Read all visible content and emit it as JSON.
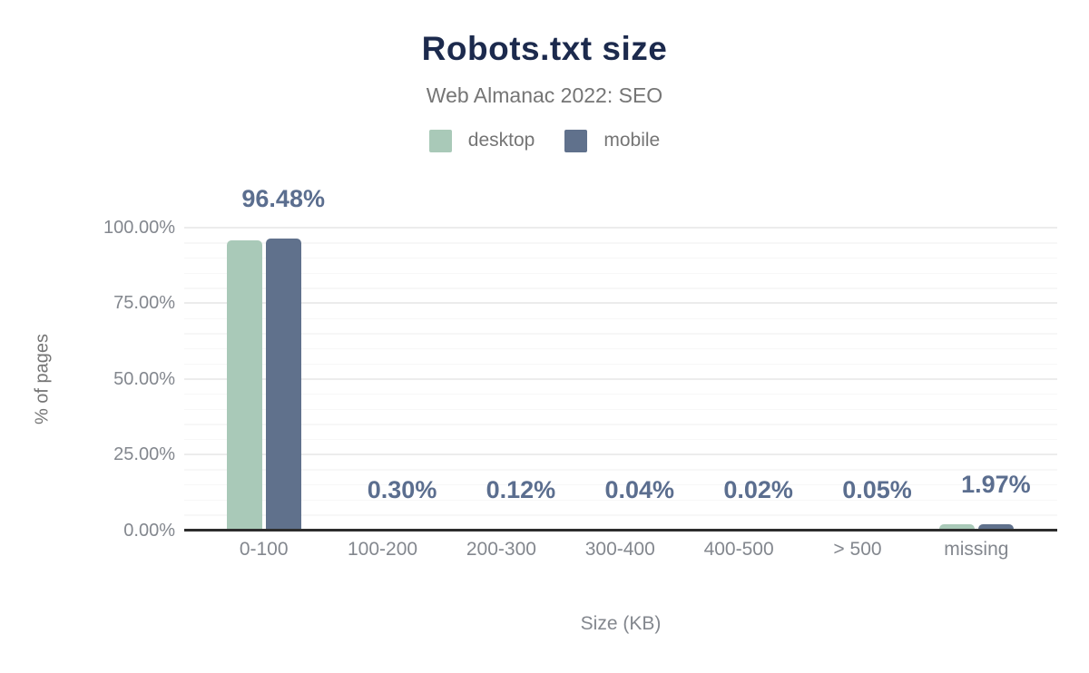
{
  "header": {
    "title": "Robots.txt size",
    "subtitle": "Web Almanac 2022: SEO"
  },
  "legend": [
    {
      "label": "desktop",
      "color": "#a9c9b8"
    },
    {
      "label": "mobile",
      "color": "#60718c"
    }
  ],
  "axes": {
    "y_title": "% of pages",
    "x_title": "Size (KB)",
    "y_tick_labels": [
      "0.00%",
      "25.00%",
      "50.00%",
      "75.00%",
      "100.00%"
    ],
    "y_tick_values": [
      0,
      25,
      50,
      75,
      100
    ]
  },
  "chart_data": {
    "type": "bar",
    "title": "Robots.txt size",
    "subtitle": "Web Almanac 2022: SEO",
    "categories": [
      "0-100",
      "100-200",
      "200-300",
      "300-400",
      "400-500",
      "> 500",
      "missing"
    ],
    "series": [
      {
        "name": "desktop",
        "color": "#a9c9b8",
        "values": [
          95.8,
          0.3,
          0.12,
          0.04,
          0.02,
          0.05,
          1.9
        ]
      },
      {
        "name": "mobile",
        "color": "#60718c",
        "values": [
          96.48,
          0.3,
          0.12,
          0.04,
          0.02,
          0.05,
          1.97
        ]
      }
    ],
    "data_labels": [
      "96.48%",
      "0.30%",
      "0.12%",
      "0.04%",
      "0.02%",
      "0.05%",
      "1.97%"
    ],
    "data_label_series": "mobile",
    "xlabel": "Size (KB)",
    "ylabel": "% of pages",
    "ylim": [
      0,
      100
    ],
    "y_major_step": 25,
    "y_minor_step": 5,
    "grid": true,
    "legend_position": "top",
    "colors": {
      "title": "#1c2a4d",
      "subtitle_text": "#757575",
      "tick_text": "#83878e",
      "data_label": "#5b6e8f",
      "axis_line": "#2d2d2d",
      "grid_major": "#ececec",
      "grid_minor": "#f7f7f7",
      "background": "#ffffff"
    }
  }
}
